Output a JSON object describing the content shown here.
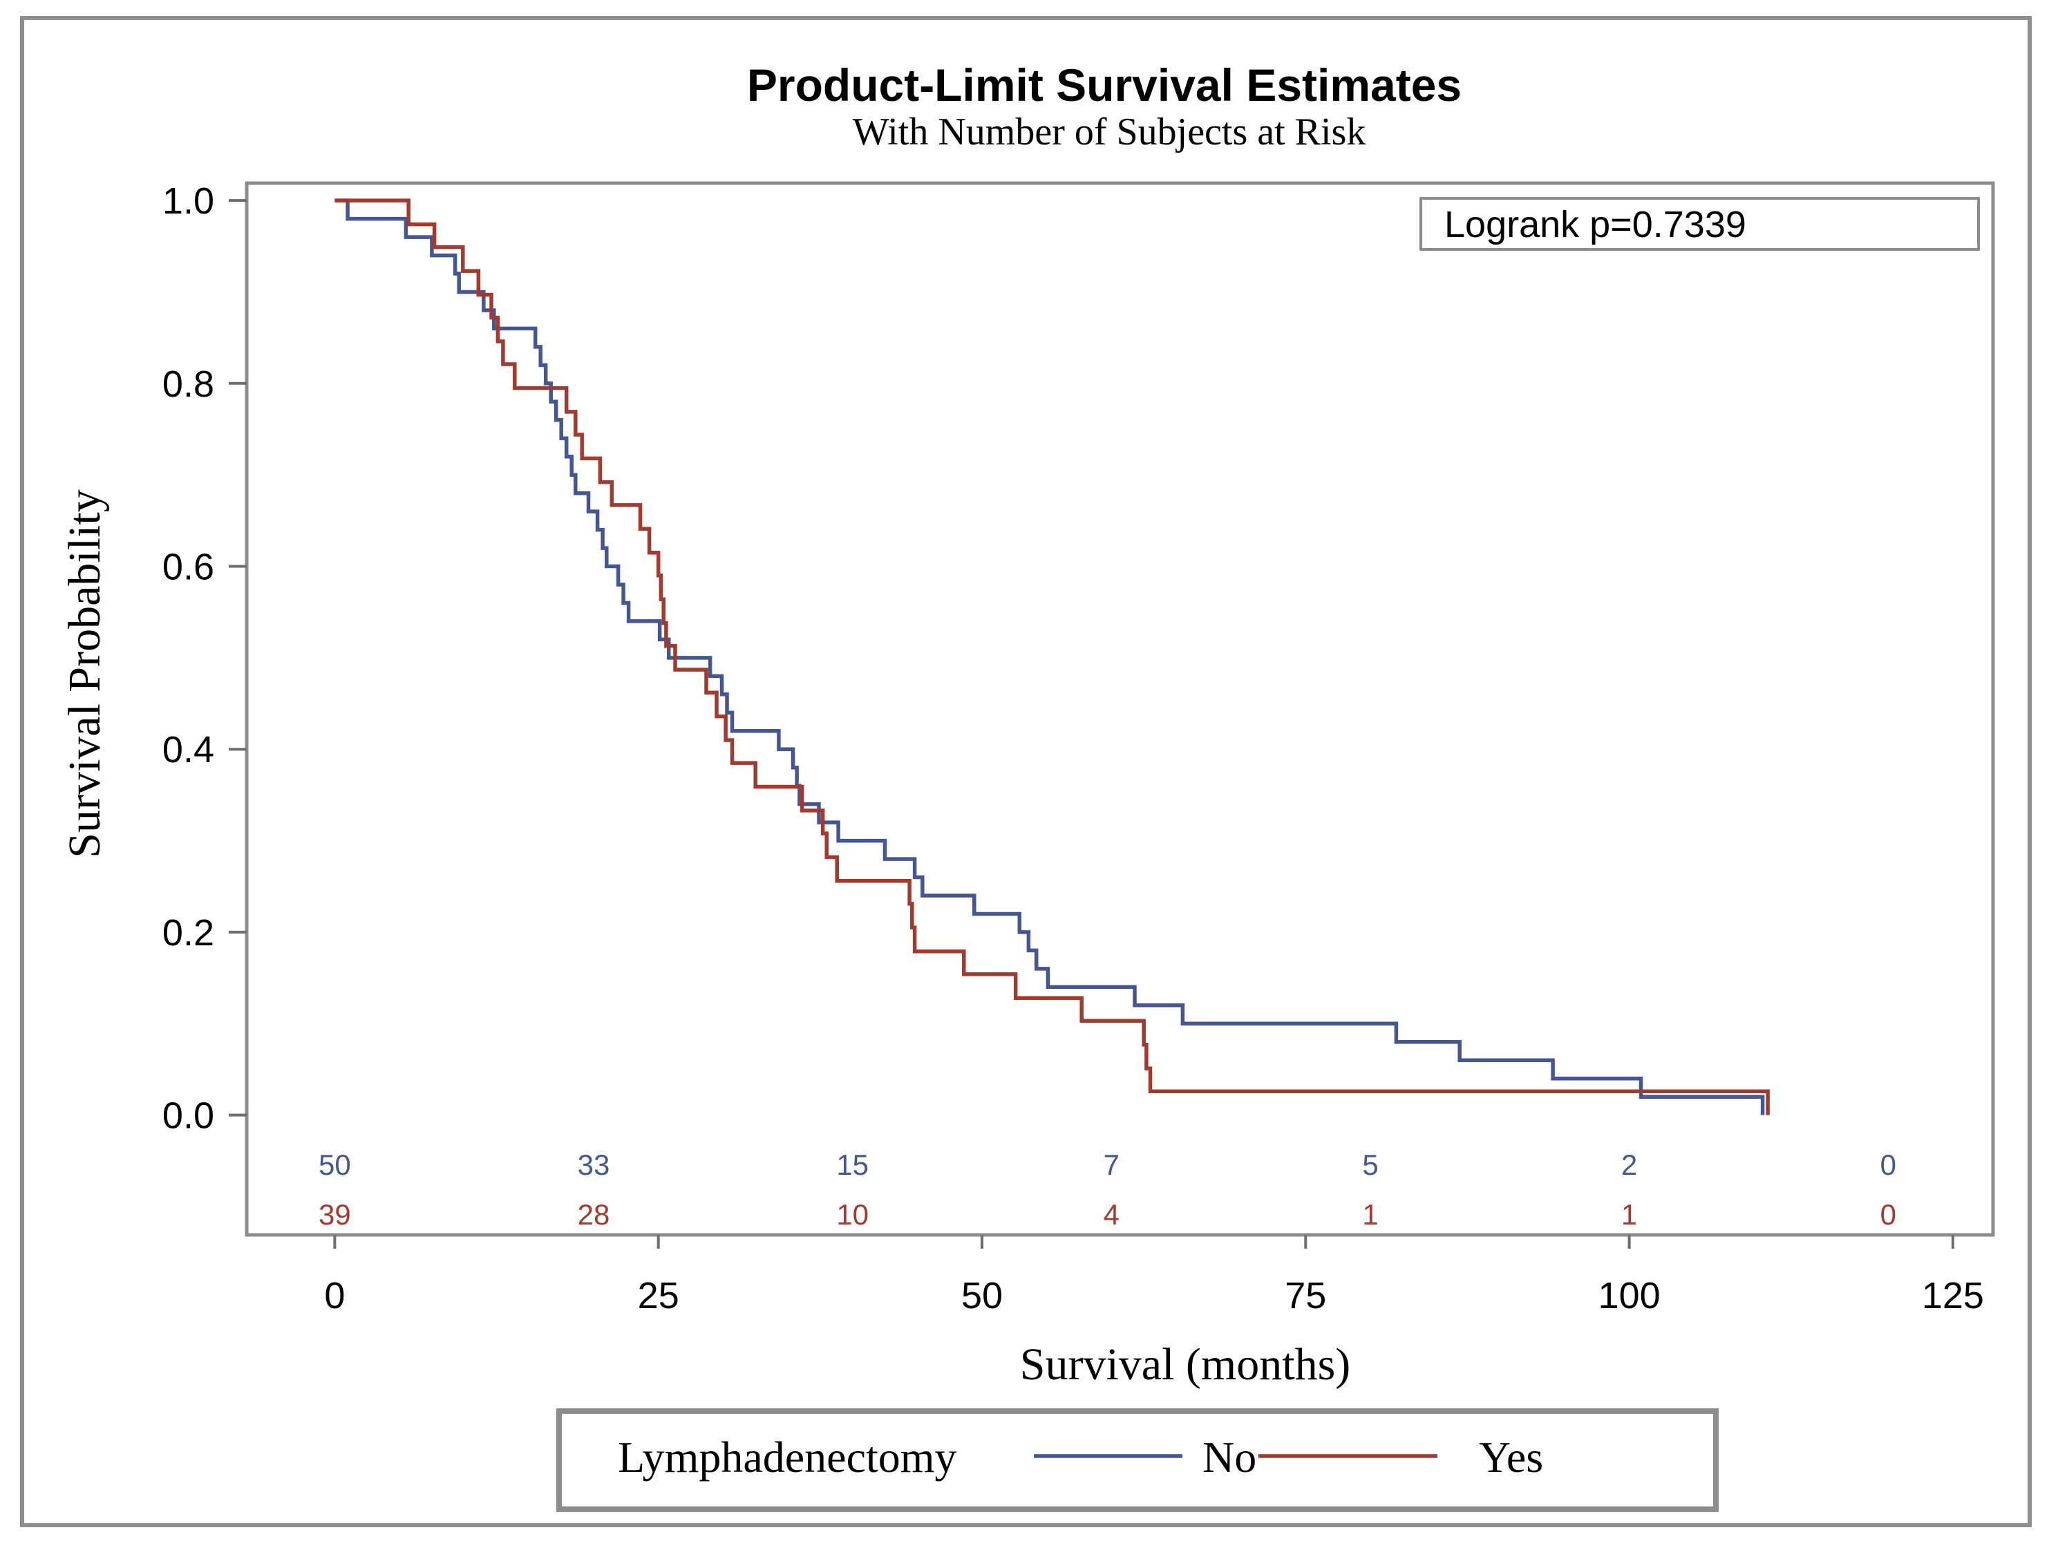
{
  "chart_data": {
    "type": "line",
    "title": "Product-Limit Survival Estimates",
    "subtitle": "With Number of Subjects at Risk",
    "xlabel": "Survival (months)",
    "ylabel": "Survival Probability",
    "xlim": [
      -6.8,
      128.1
    ],
    "ylim": [
      -0.131,
      1.019
    ],
    "grid": false,
    "xticks": [
      0,
      25,
      50,
      75,
      100,
      125
    ],
    "xtick_labels": [
      "0",
      "25",
      "50",
      "75",
      "100",
      "125"
    ],
    "yticks": [
      0.0,
      0.2,
      0.4,
      0.6,
      0.8,
      1.0
    ],
    "ytick_labels": [
      "0.0",
      "0.2",
      "0.4",
      "0.6",
      "0.8",
      "1.0"
    ],
    "annotation": "Logrank p=0.7339",
    "legend": {
      "title": "Lymphadenectomy"
    },
    "legend_position": "bottom",
    "at_risk_times": [
      0,
      20,
      40,
      60,
      80,
      100,
      120
    ],
    "series": [
      {
        "name": "No",
        "color": "#445694",
        "at_risk": [
          50,
          33,
          15,
          7,
          5,
          2,
          0
        ],
        "steps": [
          [
            0,
            1.0
          ],
          [
            1.0,
            0.98
          ],
          [
            5.5,
            0.96
          ],
          [
            7.5,
            0.94
          ],
          [
            9.3,
            0.92
          ],
          [
            9.6,
            0.9
          ],
          [
            11.5,
            0.88
          ],
          [
            12.3,
            0.86
          ],
          [
            15.5,
            0.84
          ],
          [
            15.9,
            0.82
          ],
          [
            16.3,
            0.8
          ],
          [
            16.7,
            0.78
          ],
          [
            17.1,
            0.76
          ],
          [
            17.5,
            0.74
          ],
          [
            17.9,
            0.72
          ],
          [
            18.3,
            0.7
          ],
          [
            18.6,
            0.68
          ],
          [
            19.6,
            0.66
          ],
          [
            20.3,
            0.64
          ],
          [
            20.7,
            0.62
          ],
          [
            21.0,
            0.6
          ],
          [
            21.9,
            0.58
          ],
          [
            22.3,
            0.56
          ],
          [
            22.7,
            0.54
          ],
          [
            25.1,
            0.52
          ],
          [
            25.8,
            0.5
          ],
          [
            29.0,
            0.48
          ],
          [
            29.9,
            0.46
          ],
          [
            30.3,
            0.44
          ],
          [
            30.7,
            0.42
          ],
          [
            34.3,
            0.4
          ],
          [
            35.4,
            0.38
          ],
          [
            35.7,
            0.36
          ],
          [
            35.9,
            0.34
          ],
          [
            37.4,
            0.32
          ],
          [
            38.9,
            0.3
          ],
          [
            42.5,
            0.28
          ],
          [
            44.8,
            0.26
          ],
          [
            45.4,
            0.24
          ],
          [
            49.4,
            0.22
          ],
          [
            52.9,
            0.2
          ],
          [
            53.6,
            0.18
          ],
          [
            54.2,
            0.16
          ],
          [
            55.1,
            0.14
          ],
          [
            61.8,
            0.12
          ],
          [
            65.5,
            0.1
          ],
          [
            82.0,
            0.08
          ],
          [
            86.9,
            0.06
          ],
          [
            94.1,
            0.04
          ],
          [
            100.9,
            0.02
          ],
          [
            110.3,
            0.0
          ]
        ]
      },
      {
        "name": "Yes",
        "color": "#A23A2E",
        "at_risk": [
          39,
          28,
          10,
          4,
          1,
          1,
          0
        ],
        "steps": [
          [
            0,
            1.0
          ],
          [
            5.7,
            0.974
          ],
          [
            7.7,
            0.949
          ],
          [
            9.9,
            0.923
          ],
          [
            11.1,
            0.897
          ],
          [
            12.1,
            0.872
          ],
          [
            12.6,
            0.846
          ],
          [
            13.0,
            0.821
          ],
          [
            13.9,
            0.795
          ],
          [
            17.9,
            0.769
          ],
          [
            18.6,
            0.744
          ],
          [
            19.1,
            0.718
          ],
          [
            20.5,
            0.692
          ],
          [
            21.4,
            0.667
          ],
          [
            23.6,
            0.641
          ],
          [
            24.3,
            0.615
          ],
          [
            25.0,
            0.59
          ],
          [
            25.2,
            0.564
          ],
          [
            25.4,
            0.538
          ],
          [
            25.6,
            0.513
          ],
          [
            26.3,
            0.487
          ],
          [
            28.7,
            0.462
          ],
          [
            29.5,
            0.436
          ],
          [
            30.2,
            0.41
          ],
          [
            30.7,
            0.385
          ],
          [
            32.5,
            0.359
          ],
          [
            36.1,
            0.333
          ],
          [
            37.7,
            0.308
          ],
          [
            38.0,
            0.282
          ],
          [
            38.8,
            0.256
          ],
          [
            44.4,
            0.231
          ],
          [
            44.6,
            0.205
          ],
          [
            44.8,
            0.179
          ],
          [
            48.6,
            0.154
          ],
          [
            52.6,
            0.128
          ],
          [
            57.7,
            0.103
          ],
          [
            62.5,
            0.077
          ],
          [
            62.7,
            0.051
          ],
          [
            63.0,
            0.026
          ],
          [
            110.7,
            0.0
          ]
        ]
      }
    ]
  }
}
